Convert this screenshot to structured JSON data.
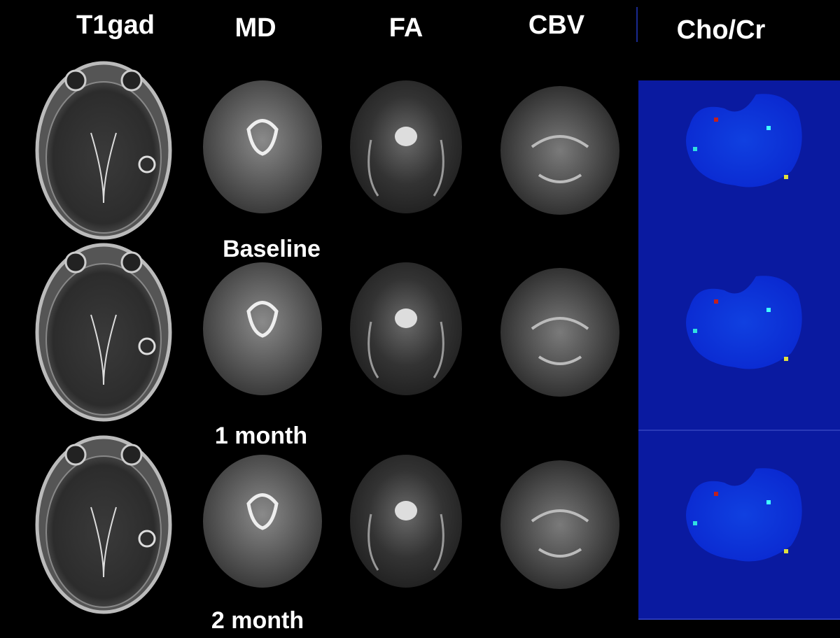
{
  "figure": {
    "columns": [
      "T1gad",
      "MD",
      "FA",
      "CBV",
      "Cho/Cr"
    ],
    "rows": [
      "Baseline",
      "1 month",
      "2 month"
    ]
  }
}
